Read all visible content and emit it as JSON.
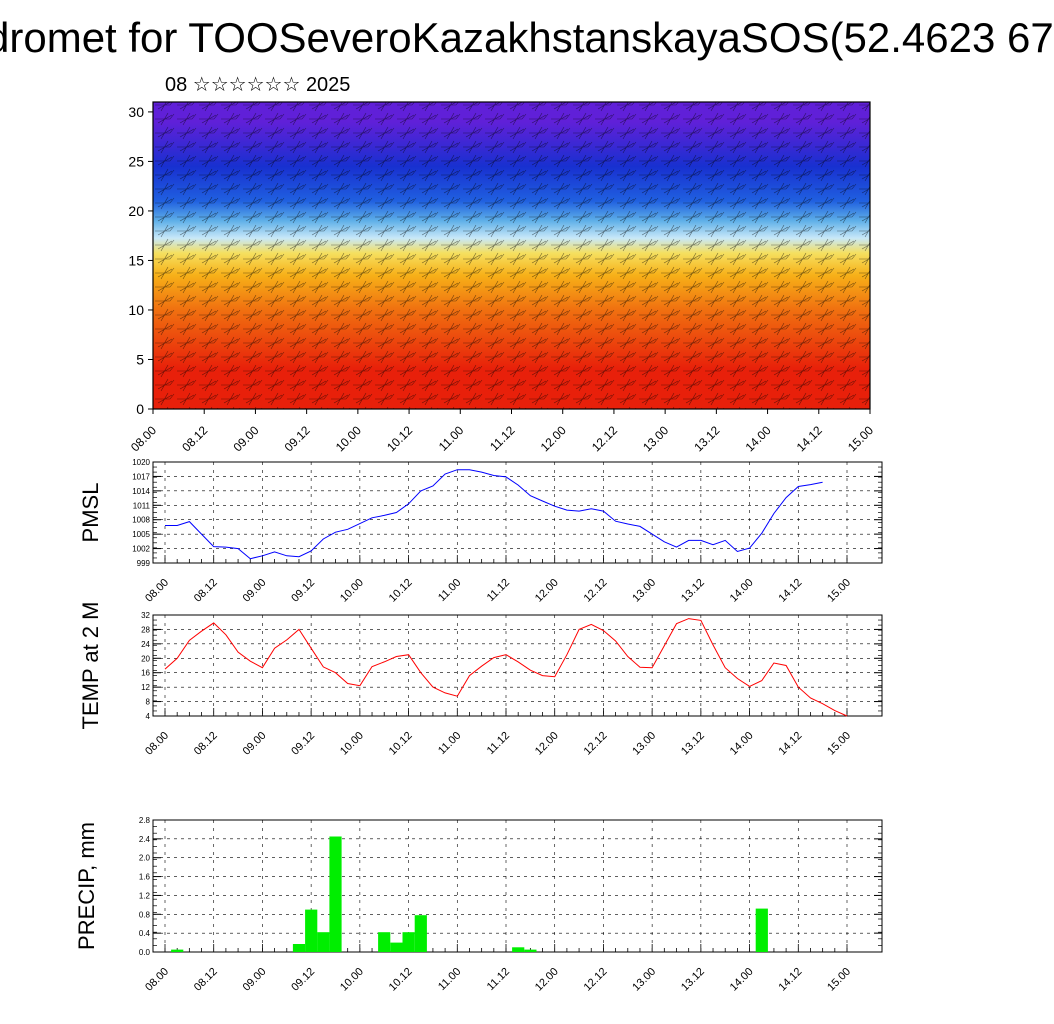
{
  "page": {
    "title": "dromet for TOOSeveroKazakhstanskayaSOS(52.4623 67",
    "subtitle": "08 ☆☆☆☆☆☆ 2025"
  },
  "colors": {
    "pmsl_line": "#0000ff",
    "temp_line": "#ff0000",
    "precip_bar": "#00ee00",
    "grid": "#000000"
  },
  "chart_data": [
    {
      "id": "vertical-section",
      "type": "heatmap",
      "title": "",
      "xlabel": "",
      "ylabel": "",
      "x_tick_labels": [
        "08.00",
        "08.12",
        "09.00",
        "09.12",
        "10.00",
        "10.12",
        "11.00",
        "11.12",
        "12.00",
        "12.12",
        "13.00",
        "13.12",
        "14.00",
        "14.12",
        "15.00"
      ],
      "y_ticks": [
        0,
        5,
        10,
        15,
        20,
        25,
        30
      ],
      "ylim": [
        0,
        31
      ],
      "color_bands": [
        {
          "from": 0,
          "to": 8,
          "color": "#e8200a"
        },
        {
          "from": 8,
          "to": 12,
          "color": "#f07010"
        },
        {
          "from": 12,
          "to": 15,
          "color": "#f7b018"
        },
        {
          "from": 15,
          "to": 16.5,
          "color": "#f5e060"
        },
        {
          "from": 16.5,
          "to": 18,
          "color": "#c8e8f8"
        },
        {
          "from": 18,
          "to": 20,
          "color": "#5fb0e8"
        },
        {
          "from": 20,
          "to": 22,
          "color": "#2060e0"
        },
        {
          "from": 22,
          "to": 27,
          "color": "#1830d0"
        },
        {
          "from": 27,
          "to": 31,
          "color": "#6020d8"
        }
      ],
      "wind_barbs": true
    },
    {
      "id": "pmsl",
      "type": "line",
      "ylabel": "PMSL",
      "x_tick_labels": [
        "08.00",
        "08.12",
        "09.00",
        "09.12",
        "10.00",
        "10.12",
        "11.00",
        "11.12",
        "12.00",
        "12.12",
        "13.00",
        "13.12",
        "14.00",
        "14.12",
        "15.00"
      ],
      "y_ticks": [
        999,
        1002,
        1005,
        1008,
        1011,
        1014,
        1017,
        1020
      ],
      "ylim": [
        999,
        1020
      ],
      "grid": true,
      "x_step_hours": 3,
      "series": [
        {
          "values": [
            1006.8,
            1006.8,
            1007.6,
            1005.0,
            1002.4,
            1002.3,
            1002.0,
            999.9,
            1000.5,
            1001.3,
            1000.5,
            1000.3,
            1001.5,
            1004.0,
            1005.4,
            1006.0,
            1007.2,
            1008.4,
            1008.9,
            1009.5,
            1011.3,
            1014.0,
            1015.0,
            1017.5,
            1018.4,
            1018.4,
            1017.9,
            1017.2,
            1016.9,
            1015.2,
            1013.0,
            1011.9,
            1010.8,
            1010.0,
            1009.8,
            1010.3,
            1009.8,
            1007.7,
            1007.1,
            1006.6,
            1005.0,
            1003.4,
            1002.3,
            1003.7,
            1003.7,
            1002.8,
            1003.7,
            1001.4,
            1002.1,
            1005.2,
            1009.3,
            1012.6,
            1014.9,
            1015.3,
            1015.8
          ]
        }
      ]
    },
    {
      "id": "temp",
      "type": "line",
      "ylabel": "TEMP at 2 M",
      "x_tick_labels": [
        "08.00",
        "08.12",
        "09.00",
        "09.12",
        "10.00",
        "10.12",
        "11.00",
        "11.12",
        "12.00",
        "12.12",
        "13.00",
        "13.12",
        "14.00",
        "14.12",
        "15.00"
      ],
      "y_ticks": [
        4,
        8,
        12,
        16,
        20,
        24,
        28,
        32
      ],
      "ylim": [
        4,
        32
      ],
      "grid": true,
      "x_step_hours": 3,
      "series": [
        {
          "values": [
            17.0,
            20.0,
            25.0,
            27.5,
            29.8,
            26.5,
            21.7,
            19.2,
            17.4,
            22.8,
            25.1,
            28.0,
            22.8,
            17.6,
            16.0,
            13.0,
            12.4,
            17.7,
            19.0,
            20.5,
            21.0,
            16.0,
            12.0,
            10.4,
            9.5,
            15.2,
            17.8,
            20.2,
            21.0,
            19.0,
            16.7,
            15.2,
            14.9,
            21.0,
            28.0,
            29.4,
            27.7,
            24.8,
            20.5,
            17.5,
            17.4,
            23.5,
            29.6,
            31.0,
            30.5,
            23.7,
            17.4,
            14.4,
            12.2,
            13.8,
            18.7,
            18.0,
            12.0,
            9.0,
            7.4,
            5.5,
            4.0
          ]
        }
      ]
    },
    {
      "id": "precip",
      "type": "bar",
      "ylabel": "PRECIP, mm",
      "x_tick_labels": [
        "08.00",
        "08.12",
        "09.00",
        "09.12",
        "10.00",
        "10.12",
        "11.00",
        "11.12",
        "12.00",
        "12.12",
        "13.00",
        "13.12",
        "14.00",
        "14.12",
        "15.00"
      ],
      "y_ticks": [
        0.0,
        0.4,
        0.8,
        1.2,
        1.6,
        2.0,
        2.4,
        2.8
      ],
      "y_tick_labels": [
        "0.0",
        "0.4",
        "0.8",
        "1.2",
        "1.6",
        "2.0",
        "2.4",
        "2.8"
      ],
      "ylim": [
        0.0,
        2.8
      ],
      "grid": true,
      "x_step_hours": 3,
      "values": [
        0,
        0.05,
        0,
        0,
        0,
        0,
        0,
        0,
        0,
        0,
        0,
        0.17,
        0.9,
        0.42,
        2.45,
        0,
        0,
        0,
        0.42,
        0.2,
        0.42,
        0.78,
        0,
        0,
        0,
        0,
        0,
        0,
        0,
        0.1,
        0.05,
        0,
        0,
        0,
        0,
        0,
        0,
        0,
        0,
        0,
        0,
        0,
        0,
        0,
        0,
        0,
        0,
        0,
        0,
        0.92,
        0,
        0,
        0,
        0,
        0,
        0
      ]
    }
  ]
}
